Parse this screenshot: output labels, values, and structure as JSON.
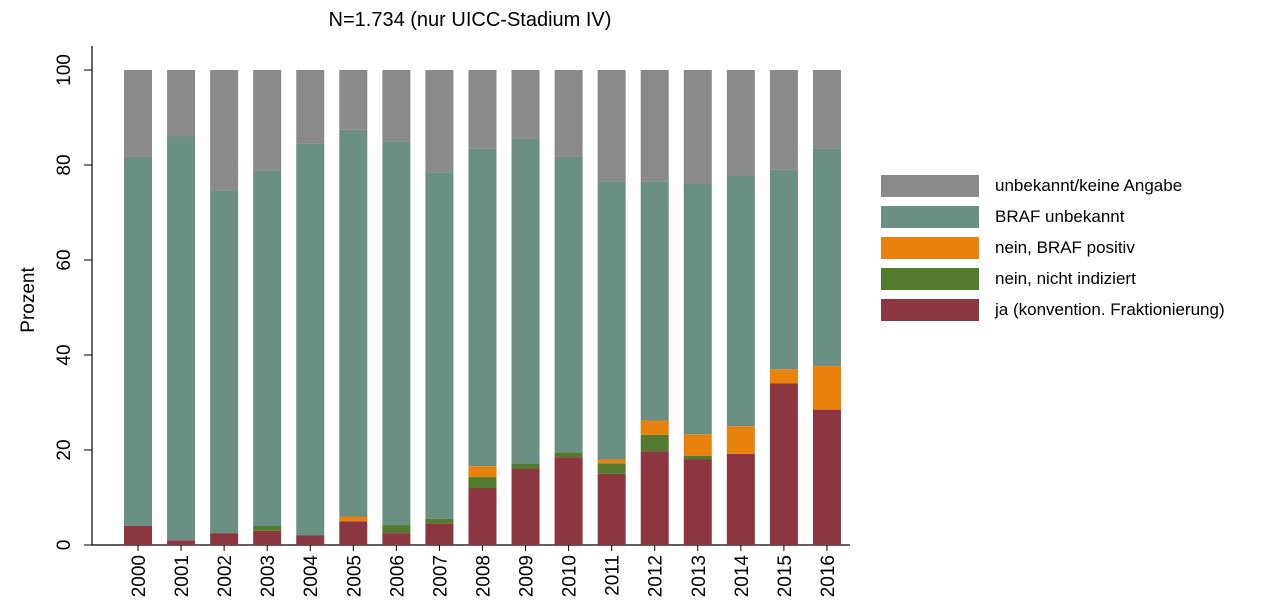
{
  "chart_data": {
    "type": "stacked_bar",
    "title": "N=1.734  (nur UICC-Stadium IV)",
    "ylabel": "Prozent",
    "categories": [
      "2000",
      "2001",
      "2002",
      "2003",
      "2004",
      "2005",
      "2006",
      "2007",
      "2008",
      "2009",
      "2010",
      "2011",
      "2012",
      "2013",
      "2014",
      "2015",
      "2016"
    ],
    "series": [
      {
        "name": "ja (konvention. Fraktionierung)",
        "color": "#8b3640",
        "values": [
          4,
          1,
          2.5,
          3,
          2,
          5,
          2.5,
          4.5,
          12,
          16,
          18.5,
          15,
          19.7,
          18,
          19.2,
          34,
          28.5
        ]
      },
      {
        "name": "nein, nicht indiziert",
        "color": "#547a30",
        "values": [
          0,
          0,
          0,
          1,
          0,
          0,
          1.7,
          1,
          2.3,
          1.2,
          1,
          2.2,
          3.5,
          0.8,
          0,
          0,
          0
        ]
      },
      {
        "name": "nein, BRAF positiv",
        "color": "#e8820c",
        "values": [
          0,
          0,
          0,
          0,
          0,
          1,
          0,
          0,
          2.3,
          0,
          0,
          0.8,
          3,
          4.5,
          5.8,
          3,
          9.2
        ]
      },
      {
        "name": "BRAF unbekannt",
        "color": "#6b8f82",
        "values": [
          77.7,
          85,
          72.2,
          74.9,
          82.6,
          81.4,
          80.8,
          73,
          66.8,
          68.3,
          62.2,
          58.5,
          50.3,
          52.7,
          52.8,
          42,
          45.8
        ]
      },
      {
        "name": "unbekannt/keine Angabe",
        "color": "#8a8a8a",
        "values": [
          18.3,
          14,
          25.3,
          21.1,
          15.4,
          12.6,
          15,
          21.5,
          16.6,
          14.5,
          18.3,
          23.5,
          23.5,
          24,
          22.2,
          21,
          16.5
        ]
      }
    ],
    "ylim": [
      0,
      100
    ],
    "yticks": [
      0,
      20,
      40,
      60,
      80,
      100
    ]
  }
}
